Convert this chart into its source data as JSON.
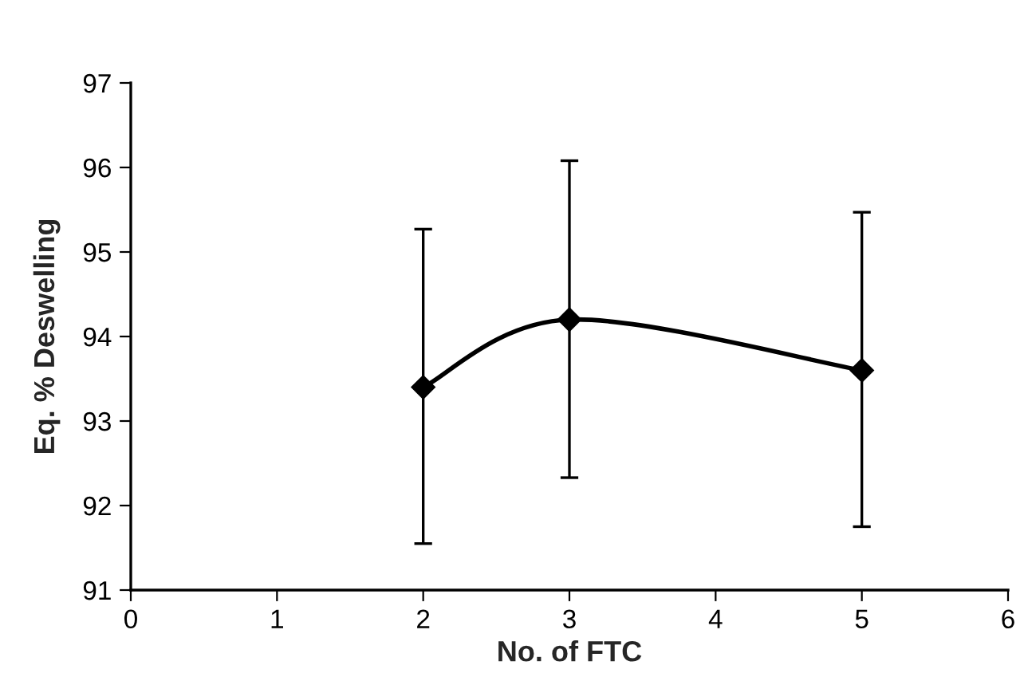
{
  "chart_data": {
    "type": "line",
    "xlabel": "No. of FTC",
    "ylabel": "Eq. % Deswelling",
    "x": [
      2,
      3,
      5
    ],
    "series": [
      {
        "color": "#000000",
        "values": [
          93.4,
          94.2,
          93.6
        ],
        "errors": [
          [
            91.55,
            95.27
          ],
          [
            92.33,
            96.08
          ],
          [
            91.75,
            95.47
          ]
        ]
      }
    ],
    "xlim": [
      0,
      6
    ],
    "xticks": [
      0,
      1,
      2,
      3,
      4,
      5,
      6
    ],
    "ylim": [
      91,
      97
    ],
    "yticks": [
      91,
      92,
      93,
      94,
      95,
      96,
      97
    ],
    "grid": false,
    "legend": false,
    "marker": "diamond",
    "line_style": "solid"
  }
}
